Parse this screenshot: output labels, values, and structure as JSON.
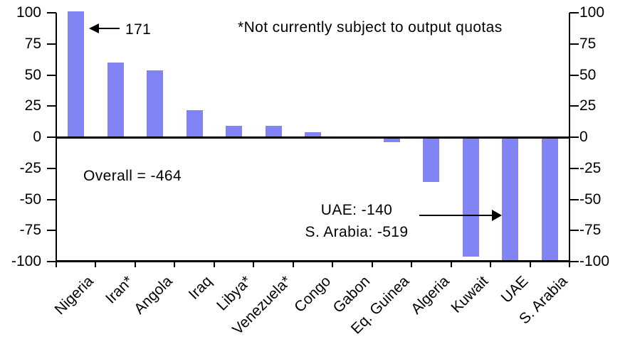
{
  "annotations": {
    "nigeria_note": "171",
    "quota_footnote": "*Not currently subject to output quotas",
    "overall_note": "Overall = -464",
    "uae_note_line1": "UAE: -140",
    "uae_note_line2": "S. Arabia: -519"
  },
  "chart_data": {
    "type": "bar",
    "categories": [
      "Nigeria",
      "Iran*",
      "Angola",
      "Iraq",
      "Libya*",
      "Venezuela*",
      "Congo",
      "Gabon",
      "Eq. Guinea",
      "Algeria",
      "Kuwait",
      "UAE",
      "S. Arabia"
    ],
    "values": [
      171,
      60,
      54,
      22,
      9,
      9,
      4,
      0,
      -4,
      -36,
      -96,
      -140,
      -519
    ],
    "title": "",
    "xlabel": "",
    "ylabel": "",
    "ylim": [
      -100,
      100
    ],
    "yticks": [
      100,
      75,
      50,
      25,
      0,
      -25,
      -50,
      -75,
      -100
    ],
    "dual_y_axis": true,
    "grid": false,
    "legend": false,
    "clip_range": [
      -100,
      100
    ],
    "clipped_bars": [
      "Nigeria",
      "UAE",
      "S. Arabia"
    ],
    "overall_total": -464,
    "bar_color": "#8283F4",
    "axis_color": "#000000"
  }
}
